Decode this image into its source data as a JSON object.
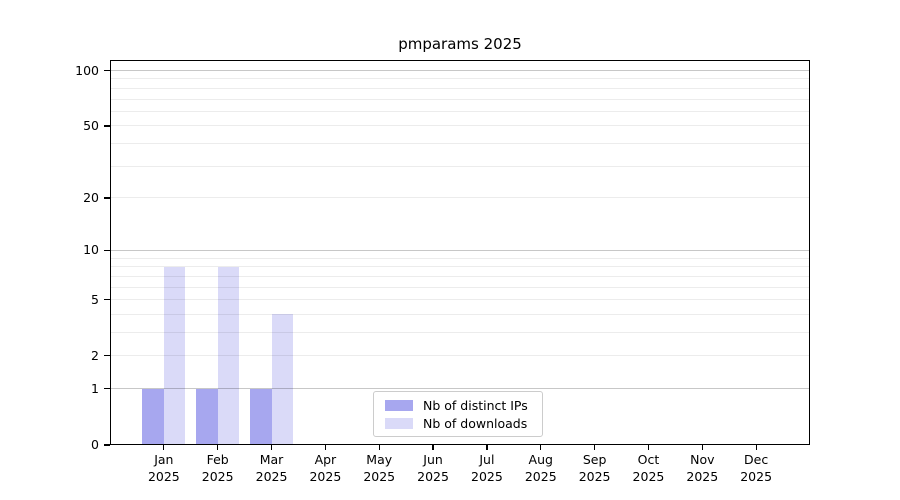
{
  "title": "pmparams 2025",
  "legend": {
    "items": [
      {
        "label": "Nb of distinct IPs",
        "color": "#a7a7ef"
      },
      {
        "label": "Nb of downloads",
        "color": "#dadaf8"
      }
    ]
  },
  "chart_data": {
    "type": "bar",
    "title": "pmparams 2025",
    "categories": [
      "Jan",
      "Feb",
      "Mar",
      "Apr",
      "May",
      "Jun",
      "Jul",
      "Aug",
      "Sep",
      "Oct",
      "Nov",
      "Dec"
    ],
    "x_year_label": "2025",
    "series": [
      {
        "name": "Nb of distinct IPs",
        "color": "#a7a7ef",
        "values": [
          1,
          1,
          1,
          0,
          0,
          0,
          0,
          0,
          0,
          0,
          0,
          0
        ]
      },
      {
        "name": "Nb of downloads",
        "color": "#dadaf8",
        "values": [
          8,
          8,
          4,
          0,
          0,
          0,
          0,
          0,
          0,
          0,
          0,
          0
        ]
      }
    ],
    "yscale": "log1p",
    "ylim": [
      0,
      114
    ],
    "y_ticks": [
      {
        "label": "0",
        "value": 0
      },
      {
        "label": "1",
        "value": 1
      },
      {
        "label": "2",
        "value": 2
      },
      {
        "label": "5",
        "value": 5
      },
      {
        "label": "10",
        "value": 10
      },
      {
        "label": "20",
        "value": 20
      },
      {
        "label": "50",
        "value": 50
      },
      {
        "label": "100",
        "value": 100
      }
    ],
    "y_major_gridlines": [
      1,
      10,
      100
    ],
    "y_minor_gridlines": [
      2,
      3,
      4,
      5,
      6,
      7,
      8,
      9,
      20,
      30,
      40,
      50,
      60,
      70,
      80,
      90
    ],
    "grid": "horizontal",
    "legend_position": "lower-center-inside",
    "bar_group": {
      "width_fraction": 0.4
    }
  },
  "colors": {
    "background": "#ffffff",
    "text": "#000000",
    "spine": "#000000",
    "major_grid": "#c7c7c7",
    "minor_grid": "#ececec"
  }
}
